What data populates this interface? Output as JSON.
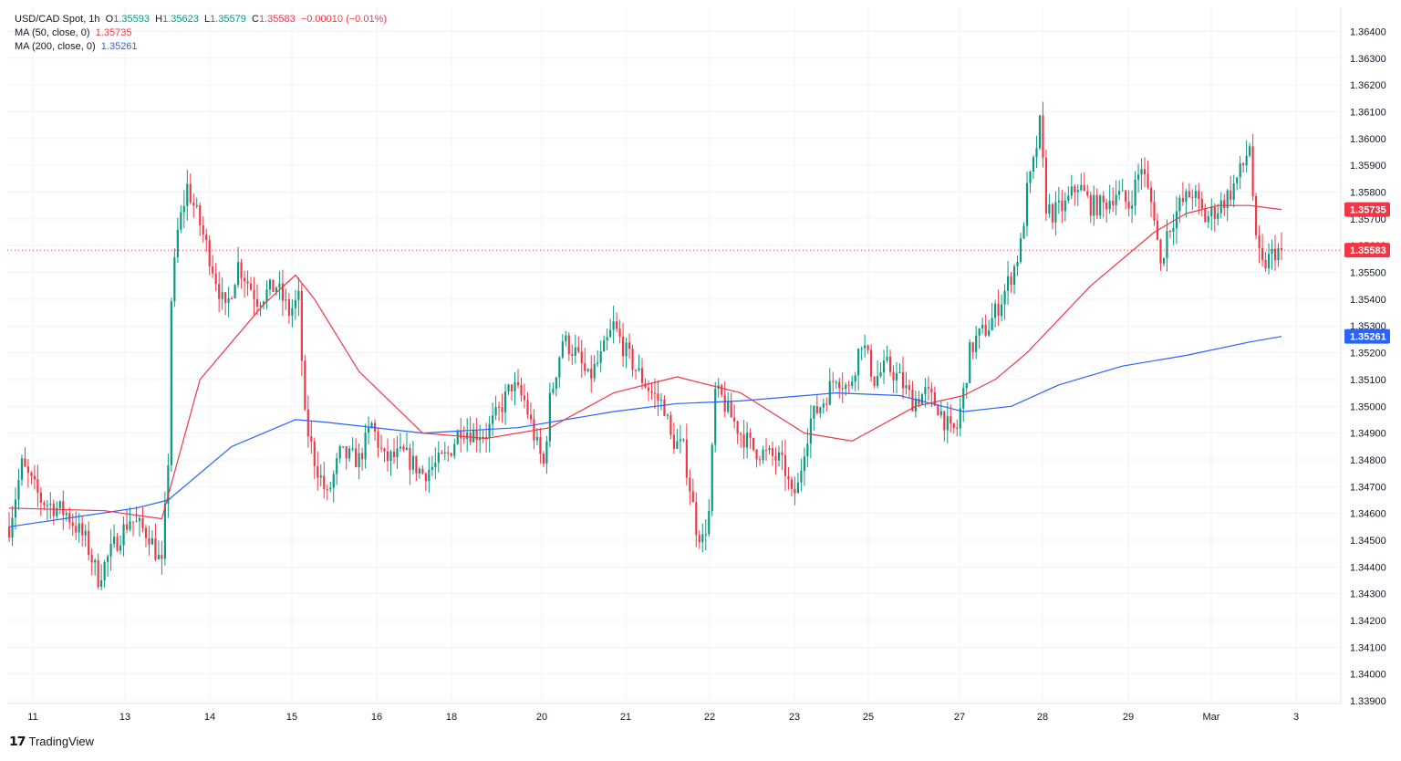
{
  "legend": {
    "symbol": "USD/CAD Spot, 1h",
    "o_label": "O",
    "o": "1.35593",
    "h_label": "H",
    "h": "1.35623",
    "l_label": "L",
    "l": "1.35579",
    "c_label": "C",
    "c": "1.35583",
    "change": "−0.00010 (−0.01%)",
    "ma50_label": "MA (50, close, 0)",
    "ma50_value": "1.35735",
    "ma200_label": "MA (200, close, 0)",
    "ma200_value": "1.35261"
  },
  "brand": {
    "name": "TradingView"
  },
  "colors": {
    "up": "#089981",
    "down": "#f23645",
    "ma50": "#f23645",
    "ma200": "#2962ff",
    "grid": "#f0f3fa",
    "axis_text": "#131722"
  },
  "chart_data": {
    "type": "candlestick",
    "ylim": [
      1.3389,
      1.3649
    ],
    "y_ticks": [
      "1.33900",
      "1.34000",
      "1.34100",
      "1.34200",
      "1.34300",
      "1.34400",
      "1.34500",
      "1.34600",
      "1.34700",
      "1.34800",
      "1.34900",
      "1.35000",
      "1.35100",
      "1.35200",
      "1.35300",
      "1.35400",
      "1.35500",
      "1.35600",
      "1.35700",
      "1.35800",
      "1.35900",
      "1.36000",
      "1.36100",
      "1.36200",
      "1.36300",
      "1.36400"
    ],
    "x_ticks": [
      "11",
      "13",
      "14",
      "15",
      "16",
      "18",
      "20",
      "21",
      "22",
      "23",
      "25",
      "27",
      "28",
      "29",
      "Mar",
      "3"
    ],
    "price_labels": [
      {
        "text": "1.35735",
        "value": 1.35735,
        "color": "#f23645"
      },
      {
        "text": "1.35583",
        "value": 1.35583,
        "color": "#f23645"
      },
      {
        "text": "1.35261",
        "value": 1.35261,
        "color": "#2962ff"
      }
    ],
    "last_price": 1.35583,
    "path_points": [
      [
        0,
        1.3455
      ],
      [
        4,
        1.3478
      ],
      [
        10,
        1.3465
      ],
      [
        18,
        1.346
      ],
      [
        24,
        1.345
      ],
      [
        28,
        1.3436
      ],
      [
        33,
        1.3448
      ],
      [
        38,
        1.3458
      ],
      [
        44,
        1.3452
      ],
      [
        48,
        1.344
      ],
      [
        50,
        1.348
      ],
      [
        51,
        1.354
      ],
      [
        53,
        1.3565
      ],
      [
        56,
        1.3582
      ],
      [
        60,
        1.3568
      ],
      [
        64,
        1.3552
      ],
      [
        68,
        1.3535
      ],
      [
        72,
        1.3553
      ],
      [
        78,
        1.354
      ],
      [
        84,
        1.3545
      ],
      [
        88,
        1.3535
      ],
      [
        91,
        1.354
      ],
      [
        93,
        1.3495
      ],
      [
        96,
        1.348
      ],
      [
        100,
        1.3466
      ],
      [
        104,
        1.3482
      ],
      [
        110,
        1.348
      ],
      [
        114,
        1.3493
      ],
      [
        118,
        1.348
      ],
      [
        124,
        1.3482
      ],
      [
        130,
        1.3475
      ],
      [
        134,
        1.3478
      ],
      [
        138,
        1.3482
      ],
      [
        142,
        1.3492
      ],
      [
        146,
        1.349
      ],
      [
        150,
        1.349
      ],
      [
        154,
        1.3498
      ],
      [
        158,
        1.3508
      ],
      [
        162,
        1.3502
      ],
      [
        166,
        1.3485
      ],
      [
        168,
        1.3478
      ],
      [
        170,
        1.3502
      ],
      [
        174,
        1.3525
      ],
      [
        178,
        1.352
      ],
      [
        182,
        1.351
      ],
      [
        186,
        1.3518
      ],
      [
        190,
        1.353
      ],
      [
        194,
        1.352
      ],
      [
        198,
        1.3512
      ],
      [
        202,
        1.3505
      ],
      [
        206,
        1.35
      ],
      [
        208,
        1.3488
      ],
      [
        212,
        1.3484
      ],
      [
        214,
        1.347
      ],
      [
        216,
        1.3455
      ],
      [
        218,
        1.345
      ],
      [
        220,
        1.346
      ],
      [
        222,
        1.3505
      ],
      [
        224,
        1.3503
      ],
      [
        226,
        1.3498
      ],
      [
        230,
        1.349
      ],
      [
        234,
        1.3484
      ],
      [
        238,
        1.3482
      ],
      [
        242,
        1.348
      ],
      [
        244,
        1.3476
      ],
      [
        246,
        1.3466
      ],
      [
        248,
        1.347
      ],
      [
        250,
        1.3485
      ],
      [
        252,
        1.3495
      ],
      [
        256,
        1.3502
      ],
      [
        260,
        1.3512
      ],
      [
        264,
        1.3506
      ],
      [
        268,
        1.3525
      ],
      [
        272,
        1.351
      ],
      [
        276,
        1.3515
      ],
      [
        280,
        1.351
      ],
      [
        284,
        1.3502
      ],
      [
        288,
        1.3505
      ],
      [
        292,
        1.35
      ],
      [
        296,
        1.349
      ],
      [
        298,
        1.3492
      ],
      [
        300,
        1.3505
      ],
      [
        302,
        1.352
      ],
      [
        304,
        1.3525
      ],
      [
        308,
        1.353
      ],
      [
        312,
        1.354
      ],
      [
        316,
        1.3552
      ],
      [
        318,
        1.356
      ],
      [
        320,
        1.358
      ],
      [
        322,
        1.359
      ],
      [
        324,
        1.3605
      ],
      [
        326,
        1.3575
      ],
      [
        328,
        1.3572
      ],
      [
        332,
        1.3575
      ],
      [
        336,
        1.3583
      ],
      [
        340,
        1.3575
      ],
      [
        344,
        1.3575
      ],
      [
        348,
        1.358
      ],
      [
        352,
        1.3575
      ],
      [
        356,
        1.359
      ],
      [
        358,
        1.358
      ],
      [
        360,
        1.3572
      ],
      [
        362,
        1.3552
      ],
      [
        364,
        1.3565
      ],
      [
        368,
        1.3575
      ],
      [
        372,
        1.358
      ],
      [
        376,
        1.357
      ],
      [
        380,
        1.3574
      ],
      [
        384,
        1.358
      ],
      [
        388,
        1.359
      ],
      [
        390,
        1.3598
      ],
      [
        392,
        1.356
      ],
      [
        394,
        1.3552
      ],
      [
        398,
        1.3558
      ],
      [
        400,
        1.35583
      ]
    ],
    "ma50_path": [
      [
        0,
        1.3462
      ],
      [
        30,
        1.3461
      ],
      [
        48,
        1.3458
      ],
      [
        60,
        1.351
      ],
      [
        80,
        1.3538
      ],
      [
        90,
        1.3549
      ],
      [
        96,
        1.354
      ],
      [
        110,
        1.3513
      ],
      [
        130,
        1.349
      ],
      [
        150,
        1.3488
      ],
      [
        170,
        1.3492
      ],
      [
        190,
        1.3505
      ],
      [
        210,
        1.3511
      ],
      [
        230,
        1.3505
      ],
      [
        250,
        1.349
      ],
      [
        265,
        1.3487
      ],
      [
        285,
        1.35
      ],
      [
        300,
        1.3504
      ],
      [
        310,
        1.351
      ],
      [
        320,
        1.352
      ],
      [
        340,
        1.3545
      ],
      [
        360,
        1.3565
      ],
      [
        370,
        1.3572
      ],
      [
        380,
        1.3575
      ],
      [
        390,
        1.3575
      ],
      [
        400,
        1.35735
      ]
    ],
    "ma200_path": [
      [
        0,
        1.3455
      ],
      [
        40,
        1.3462
      ],
      [
        50,
        1.3465
      ],
      [
        70,
        1.3485
      ],
      [
        90,
        1.3495
      ],
      [
        100,
        1.3494
      ],
      [
        130,
        1.349
      ],
      [
        160,
        1.3492
      ],
      [
        190,
        1.3498
      ],
      [
        210,
        1.3501
      ],
      [
        230,
        1.3502
      ],
      [
        260,
        1.3505
      ],
      [
        280,
        1.3504
      ],
      [
        300,
        1.3498
      ],
      [
        315,
        1.35
      ],
      [
        330,
        1.3508
      ],
      [
        350,
        1.3515
      ],
      [
        370,
        1.3519
      ],
      [
        390,
        1.3524
      ],
      [
        400,
        1.35261
      ]
    ]
  }
}
